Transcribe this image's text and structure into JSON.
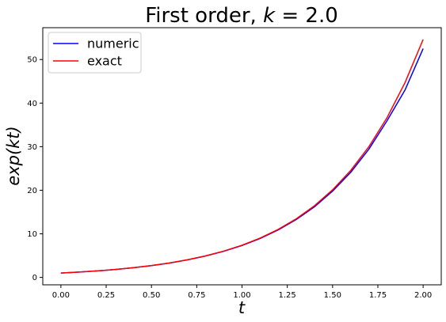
{
  "chart_data": {
    "type": "line",
    "title": "First order, k = 2.0",
    "title_parts": {
      "prefix": "First order, ",
      "variable": "k",
      "suffix": " = 2.0"
    },
    "xlabel": "t",
    "ylabel": "exp(kt)",
    "xlim": [
      -0.1,
      2.1
    ],
    "ylim": [
      -1.7,
      57.3
    ],
    "xticks": [
      0.0,
      0.25,
      0.5,
      0.75,
      1.0,
      1.25,
      1.5,
      1.75,
      2.0
    ],
    "xtick_labels": [
      "0.00",
      "0.25",
      "0.50",
      "0.75",
      "1.00",
      "1.25",
      "1.50",
      "1.75",
      "2.00"
    ],
    "yticks": [
      0,
      10,
      20,
      30,
      40,
      50
    ],
    "ytick_labels": [
      "0",
      "10",
      "20",
      "30",
      "40",
      "50"
    ],
    "grid": false,
    "legend_position": "top-left",
    "x": [
      0.0,
      0.1,
      0.2,
      0.3,
      0.4,
      0.5,
      0.6,
      0.7,
      0.8,
      0.9,
      1.0,
      1.1,
      1.2,
      1.3,
      1.4,
      1.5,
      1.6,
      1.7,
      1.8,
      1.9,
      2.0
    ],
    "series": [
      {
        "name": "numeric",
        "color": "#0000ff",
        "values": [
          1.0,
          1.22,
          1.49,
          1.82,
          2.22,
          2.71,
          3.3,
          4.03,
          4.92,
          6.0,
          7.32,
          8.93,
          10.9,
          13.3,
          16.2,
          19.8,
          24.1,
          29.4,
          35.9,
          43.0,
          52.5
        ]
      },
      {
        "name": "exact",
        "color": "#ff0000",
        "values": [
          1.0,
          1.22,
          1.49,
          1.82,
          2.23,
          2.72,
          3.32,
          4.06,
          4.95,
          6.05,
          7.39,
          9.03,
          11.02,
          13.46,
          16.44,
          20.09,
          24.53,
          29.96,
          36.6,
          44.7,
          54.6
        ]
      }
    ]
  }
}
